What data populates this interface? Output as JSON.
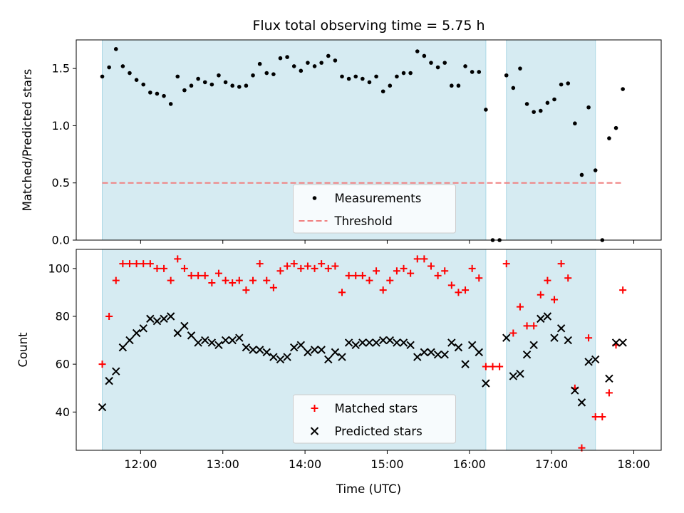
{
  "title": "Flux total observing time = 5.75 h",
  "colors": {
    "band": "#add8e6",
    "threshold": "#f08080",
    "matched": "#ff0000",
    "predicted": "#000000",
    "measurements": "#000000"
  },
  "chart_data": [
    {
      "type": "scatter",
      "ylabel": "Matched/Predicted stars",
      "ylim": [
        0,
        1.75
      ],
      "yticks": [
        0.0,
        0.5,
        1.0,
        1.5
      ],
      "ytick_labels": [
        "0.0",
        "0.5",
        "1.0",
        "1.5"
      ],
      "legend_position": "lower-center",
      "observing_windows": [
        [
          "11:32",
          "16:12"
        ],
        [
          "16:27",
          "17:32"
        ]
      ],
      "series": [
        {
          "name": "Measurements",
          "marker": "dot",
          "x": [
            "11:32",
            "11:37",
            "11:42",
            "11:47",
            "11:52",
            "11:57",
            "12:02",
            "12:07",
            "12:12",
            "12:17",
            "12:22",
            "12:27",
            "12:32",
            "12:37",
            "12:42",
            "12:47",
            "12:52",
            "12:57",
            "13:02",
            "13:07",
            "13:12",
            "13:17",
            "13:22",
            "13:27",
            "13:32",
            "13:37",
            "13:42",
            "13:47",
            "13:52",
            "13:57",
            "14:02",
            "14:07",
            "14:12",
            "14:17",
            "14:22",
            "14:27",
            "14:32",
            "14:37",
            "14:42",
            "14:47",
            "14:52",
            "14:57",
            "15:02",
            "15:07",
            "15:12",
            "15:17",
            "15:22",
            "15:27",
            "15:32",
            "15:37",
            "15:42",
            "15:47",
            "15:52",
            "15:57",
            "16:02",
            "16:07",
            "16:12",
            "16:17",
            "16:22",
            "16:27",
            "16:32",
            "16:37",
            "16:42",
            "16:47",
            "16:52",
            "16:57",
            "17:02",
            "17:07",
            "17:12",
            "17:17",
            "17:22",
            "17:27",
            "17:32",
            "17:37",
            "17:42",
            "17:47",
            "17:52"
          ],
          "y": [
            1.43,
            1.51,
            1.67,
            1.52,
            1.46,
            1.4,
            1.36,
            1.29,
            1.28,
            1.26,
            1.19,
            1.43,
            1.31,
            1.35,
            1.41,
            1.38,
            1.36,
            1.44,
            1.38,
            1.35,
            1.34,
            1.35,
            1.44,
            1.54,
            1.46,
            1.45,
            1.59,
            1.6,
            1.52,
            1.48,
            1.55,
            1.52,
            1.55,
            1.61,
            1.57,
            1.43,
            1.41,
            1.43,
            1.41,
            1.38,
            1.43,
            1.3,
            1.35,
            1.43,
            1.46,
            1.46,
            1.65,
            1.61,
            1.55,
            1.51,
            1.55,
            1.35,
            1.35,
            1.52,
            1.47,
            1.47,
            1.14,
            0.0,
            0.0,
            1.44,
            1.33,
            1.5,
            1.19,
            1.12,
            1.13,
            1.2,
            1.23,
            1.36,
            1.37,
            1.02,
            0.57,
            1.16,
            0.61,
            0.0,
            0.89,
            0.98,
            1.32
          ]
        },
        {
          "name": "Threshold",
          "style": "dashed",
          "x": [
            "11:32",
            "17:52"
          ],
          "y": [
            0.5,
            0.5
          ]
        }
      ]
    },
    {
      "type": "scatter",
      "xlabel": "Time (UTC)",
      "ylabel": "Count",
      "ylim": [
        24,
        108
      ],
      "xlim": [
        "11:13",
        "18:20"
      ],
      "xticks": [
        "12:00",
        "13:00",
        "14:00",
        "15:00",
        "16:00",
        "17:00",
        "18:00"
      ],
      "yticks": [
        40,
        60,
        80,
        100
      ],
      "legend_position": "lower-center",
      "observing_windows": [
        [
          "11:32",
          "16:12"
        ],
        [
          "16:27",
          "17:32"
        ]
      ],
      "series": [
        {
          "name": "Matched stars",
          "marker": "plus",
          "x": [
            "11:32",
            "11:37",
            "11:42",
            "11:47",
            "11:52",
            "11:57",
            "12:02",
            "12:07",
            "12:12",
            "12:17",
            "12:22",
            "12:27",
            "12:32",
            "12:37",
            "12:42",
            "12:47",
            "12:52",
            "12:57",
            "13:02",
            "13:07",
            "13:12",
            "13:17",
            "13:22",
            "13:27",
            "13:32",
            "13:37",
            "13:42",
            "13:47",
            "13:52",
            "13:57",
            "14:02",
            "14:07",
            "14:12",
            "14:17",
            "14:22",
            "14:27",
            "14:32",
            "14:37",
            "14:42",
            "14:47",
            "14:52",
            "14:57",
            "15:02",
            "15:07",
            "15:12",
            "15:17",
            "15:22",
            "15:27",
            "15:32",
            "15:37",
            "15:42",
            "15:47",
            "15:52",
            "15:57",
            "16:02",
            "16:07",
            "16:12",
            "16:17",
            "16:22",
            "16:27",
            "16:32",
            "16:37",
            "16:42",
            "16:47",
            "16:52",
            "16:57",
            "17:02",
            "17:07",
            "17:12",
            "17:17",
            "17:22",
            "17:27",
            "17:32",
            "17:37",
            "17:42",
            "17:47",
            "17:52"
          ],
          "y": [
            60,
            80,
            95,
            102,
            102,
            102,
            102,
            102,
            100,
            100,
            95,
            104,
            100,
            97,
            97,
            97,
            94,
            98,
            95,
            94,
            95,
            91,
            95,
            102,
            95,
            92,
            99,
            101,
            102,
            100,
            101,
            100,
            102,
            100,
            101,
            90,
            97,
            97,
            97,
            95,
            99,
            91,
            95,
            99,
            100,
            98,
            104,
            104,
            101,
            97,
            99,
            93,
            90,
            91,
            100,
            96,
            59,
            59,
            59,
            102,
            73,
            84,
            76,
            76,
            89,
            95,
            87,
            102,
            96,
            50,
            25,
            71,
            38,
            38,
            48,
            68,
            91
          ]
        },
        {
          "name": "Predicted stars",
          "marker": "x",
          "x": [
            "11:32",
            "11:37",
            "11:42",
            "11:47",
            "11:52",
            "11:57",
            "12:02",
            "12:07",
            "12:12",
            "12:17",
            "12:22",
            "12:27",
            "12:32",
            "12:37",
            "12:42",
            "12:47",
            "12:52",
            "12:57",
            "13:02",
            "13:07",
            "13:12",
            "13:17",
            "13:22",
            "13:27",
            "13:32",
            "13:37",
            "13:42",
            "13:47",
            "13:52",
            "13:57",
            "14:02",
            "14:07",
            "14:12",
            "14:17",
            "14:22",
            "14:27",
            "14:32",
            "14:37",
            "14:42",
            "14:47",
            "14:52",
            "14:57",
            "15:02",
            "15:07",
            "15:12",
            "15:17",
            "15:22",
            "15:27",
            "15:32",
            "15:37",
            "15:42",
            "15:47",
            "15:52",
            "15:57",
            "16:02",
            "16:07",
            "16:12",
            "16:27",
            "16:32",
            "16:37",
            "16:42",
            "16:47",
            "16:52",
            "16:57",
            "17:02",
            "17:07",
            "17:12",
            "17:17",
            "17:22",
            "17:27",
            "17:32",
            "17:42",
            "17:47",
            "17:52"
          ],
          "y": [
            42,
            53,
            57,
            67,
            70,
            73,
            75,
            79,
            78,
            79,
            80,
            73,
            76,
            72,
            69,
            70,
            69,
            68,
            70,
            70,
            71,
            67,
            66,
            66,
            65,
            63,
            62,
            63,
            67,
            68,
            65,
            66,
            66,
            62,
            65,
            63,
            69,
            68,
            69,
            69,
            69,
            70,
            70,
            69,
            69,
            68,
            63,
            65,
            65,
            64,
            64,
            69,
            67,
            60,
            68,
            65,
            52,
            71,
            55,
            56,
            64,
            68,
            79,
            80,
            71,
            75,
            70,
            49,
            44,
            61,
            62,
            54,
            69,
            69
          ]
        }
      ]
    }
  ]
}
